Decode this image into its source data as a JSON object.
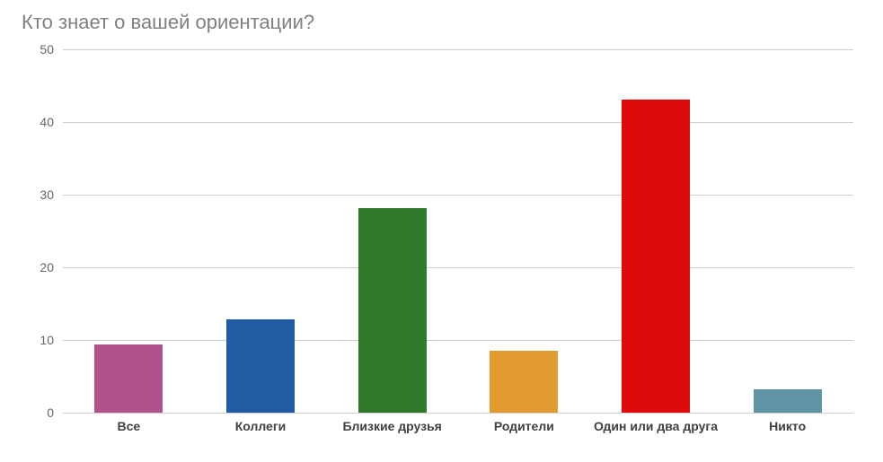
{
  "chart": {
    "type": "bar",
    "title": "Кто знает о вашей ориентации?",
    "title_color": "#808080",
    "title_fontsize": 22,
    "background_color": "#ffffff",
    "grid_color": "#cccccc",
    "tick_label_color": "#666666",
    "x_label_color": "#404040",
    "x_label_fontweight": 700,
    "tick_fontsize": 14,
    "ylim": [
      0,
      50
    ],
    "ytick_step": 10,
    "yticks": [
      "0",
      "10",
      "20",
      "30",
      "40",
      "50"
    ],
    "bar_width_ratio": 0.52,
    "categories": [
      "Все",
      "Коллеги",
      "Близкие друзья",
      "Родители",
      "Один или два друга",
      "Никто"
    ],
    "values": [
      9.4,
      12.8,
      28.1,
      8.5,
      43.1,
      3.2
    ],
    "bar_colors": [
      "#b2528c",
      "#215ba3",
      "#307b2b",
      "#e29b2e",
      "#de0b0c",
      "#5e94a3"
    ]
  }
}
